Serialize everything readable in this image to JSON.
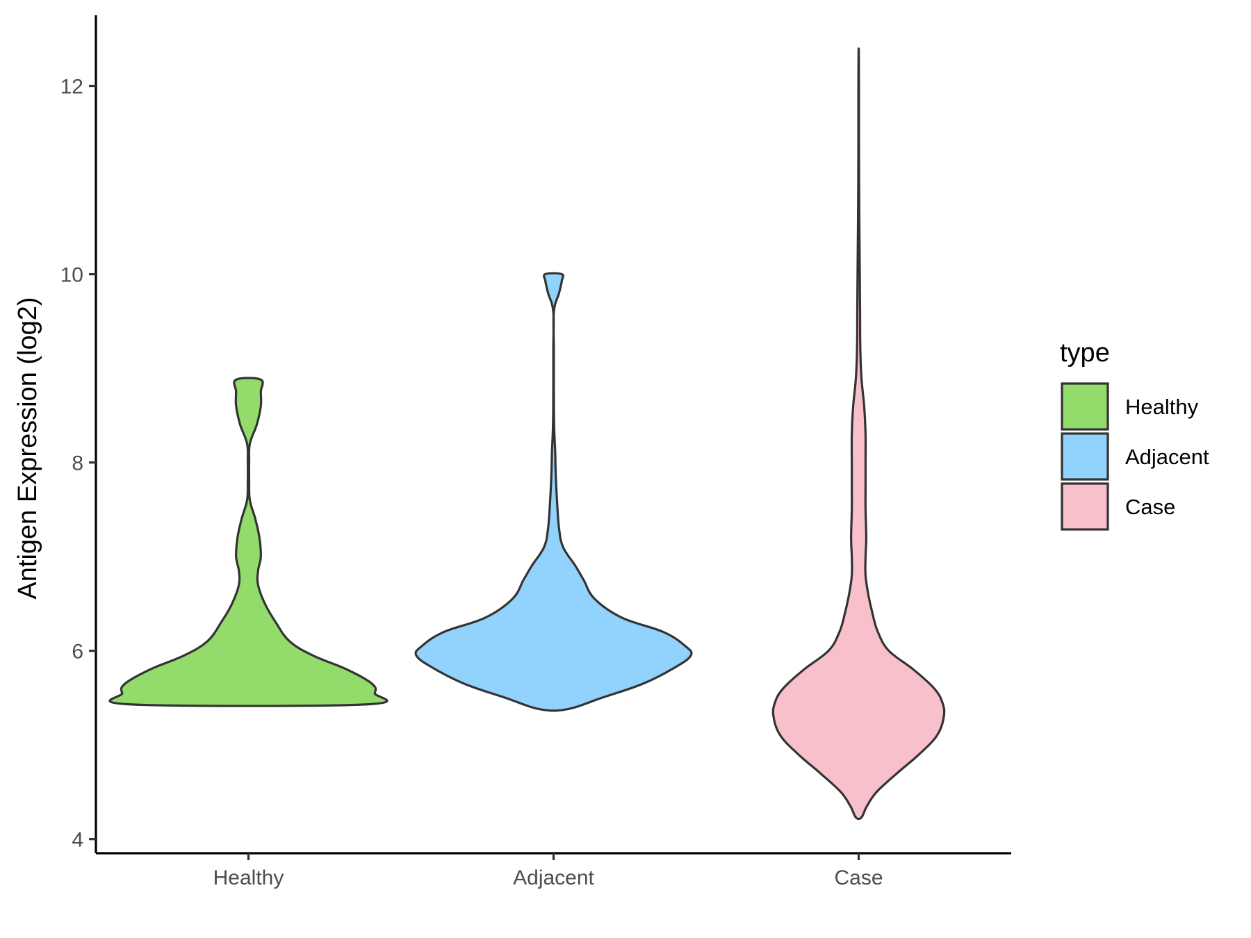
{
  "chart_data": {
    "type": "violin",
    "xlabel": "",
    "ylabel": "Antigen Expression (log2)",
    "ylim": [
      3.85,
      12.75
    ],
    "yticks": [
      4,
      6,
      8,
      10,
      12
    ],
    "categories": [
      "Healthy",
      "Adjacent",
      "Case"
    ],
    "legend": {
      "title": "type",
      "placement": "right",
      "entries": [
        "Healthy",
        "Adjacent",
        "Case"
      ]
    },
    "grid": false,
    "series": [
      {
        "category": "Healthy",
        "color": "#93DB6A",
        "min": 5.43,
        "max": 8.88,
        "profile": [
          [
            5.43,
            0.85
          ],
          [
            5.55,
            0.92
          ],
          [
            5.65,
            0.9
          ],
          [
            5.8,
            0.72
          ],
          [
            5.95,
            0.47
          ],
          [
            6.1,
            0.3
          ],
          [
            6.3,
            0.2
          ],
          [
            6.5,
            0.12
          ],
          [
            6.7,
            0.07
          ],
          [
            6.85,
            0.07
          ],
          [
            7.0,
            0.09
          ],
          [
            7.2,
            0.08
          ],
          [
            7.4,
            0.05
          ],
          [
            7.6,
            0.01
          ],
          [
            7.8,
            0.005
          ],
          [
            8.0,
            0.005
          ],
          [
            8.2,
            0.01
          ],
          [
            8.4,
            0.06
          ],
          [
            8.6,
            0.09
          ],
          [
            8.75,
            0.09
          ],
          [
            8.88,
            0.09
          ]
        ]
      },
      {
        "category": "Adjacent",
        "color": "#92D3FD",
        "min": 5.38,
        "max": 10.0,
        "profile": [
          [
            5.38,
            0.1
          ],
          [
            5.5,
            0.35
          ],
          [
            5.65,
            0.65
          ],
          [
            5.82,
            0.88
          ],
          [
            5.95,
            1.0
          ],
          [
            6.05,
            0.96
          ],
          [
            6.2,
            0.8
          ],
          [
            6.35,
            0.5
          ],
          [
            6.55,
            0.3
          ],
          [
            6.75,
            0.22
          ],
          [
            6.9,
            0.16
          ],
          [
            7.1,
            0.07
          ],
          [
            7.3,
            0.04
          ],
          [
            7.6,
            0.025
          ],
          [
            7.9,
            0.015
          ],
          [
            8.1,
            0.012
          ],
          [
            8.4,
            0.004
          ],
          [
            8.8,
            0.002
          ],
          [
            9.2,
            0.002
          ],
          [
            9.6,
            0.002
          ],
          [
            9.8,
            0.04
          ],
          [
            9.93,
            0.06
          ],
          [
            10.0,
            0.06
          ]
        ]
      },
      {
        "category": "Case",
        "color": "#F8C0CB",
        "min": 4.23,
        "max": 12.35,
        "profile": [
          [
            4.23,
            0.02
          ],
          [
            4.35,
            0.06
          ],
          [
            4.5,
            0.13
          ],
          [
            4.7,
            0.28
          ],
          [
            4.9,
            0.44
          ],
          [
            5.1,
            0.57
          ],
          [
            5.3,
            0.62
          ],
          [
            5.45,
            0.61
          ],
          [
            5.6,
            0.55
          ],
          [
            5.8,
            0.4
          ],
          [
            6.0,
            0.22
          ],
          [
            6.2,
            0.14
          ],
          [
            6.4,
            0.1
          ],
          [
            6.6,
            0.07
          ],
          [
            6.8,
            0.05
          ],
          [
            7.0,
            0.05
          ],
          [
            7.2,
            0.055
          ],
          [
            7.5,
            0.05
          ],
          [
            7.8,
            0.05
          ],
          [
            8.0,
            0.05
          ],
          [
            8.3,
            0.05
          ],
          [
            8.6,
            0.04
          ],
          [
            8.9,
            0.02
          ],
          [
            9.2,
            0.012
          ],
          [
            9.6,
            0.01
          ],
          [
            10.0,
            0.008
          ],
          [
            10.5,
            0.005
          ],
          [
            11.0,
            0.003
          ],
          [
            11.5,
            0.002
          ],
          [
            12.0,
            0.002
          ],
          [
            12.35,
            0.001
          ]
        ]
      }
    ]
  }
}
